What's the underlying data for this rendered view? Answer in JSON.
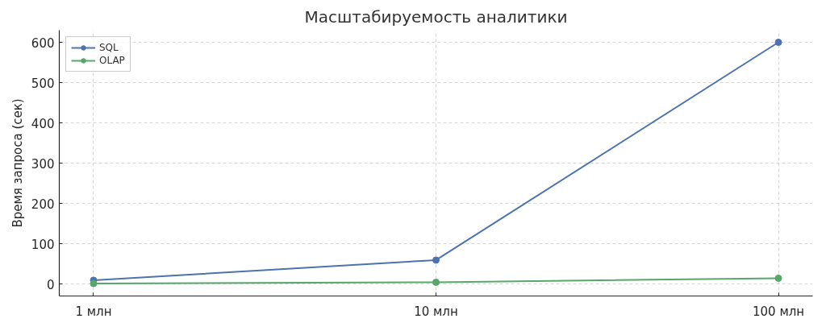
{
  "chart_data": {
    "type": "line",
    "title": "Масштабируемость аналитики",
    "ylabel": "Время запроса (сек)",
    "categories": [
      "1 млн",
      "10 млн",
      "100 млн"
    ],
    "series": [
      {
        "name": "SQL",
        "color": "#4c72b0",
        "values": [
          10,
          60,
          600
        ]
      },
      {
        "name": "OLAP",
        "color": "#55a868",
        "values": [
          2,
          5,
          15
        ]
      }
    ],
    "ylim": [
      -29,
      630
    ],
    "yticks": [
      0,
      100,
      200,
      300,
      400,
      500,
      600
    ],
    "grid": true,
    "legend": "top left",
    "marker": "circle",
    "line_style": "solid"
  }
}
